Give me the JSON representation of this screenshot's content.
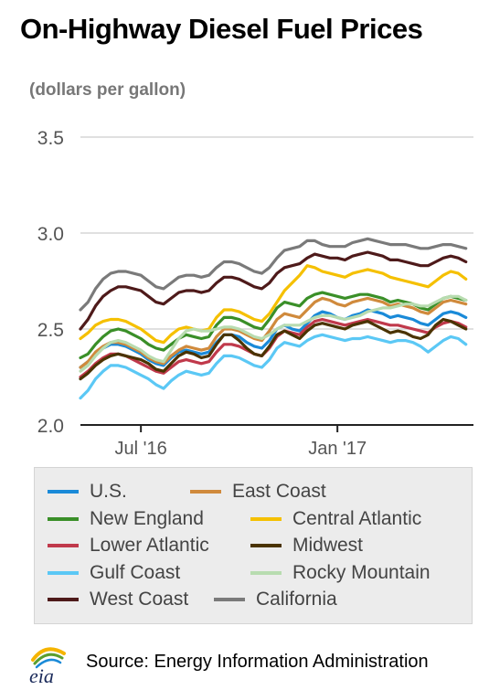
{
  "title": "On-Highway Diesel Fuel Prices",
  "units_label": "(dollars per gallon)",
  "source": "Source: Energy Information Administration",
  "logo_text": "eia",
  "chart_data": {
    "type": "line",
    "ylim": [
      2.0,
      3.5
    ],
    "y_ticks": [
      "2.0",
      "2.5",
      "3.0",
      "3.5"
    ],
    "x_tick_labels": [
      "Jul '16",
      "Jan '17"
    ],
    "x_tick_positions": [
      8,
      34
    ],
    "x_range": [
      0,
      52
    ],
    "grid": true,
    "legend_position": "bottom",
    "series": [
      {
        "name": "U.S.",
        "color": "#1a8ad8",
        "values": [
          2.3,
          2.33,
          2.37,
          2.4,
          2.42,
          2.42,
          2.41,
          2.39,
          2.37,
          2.34,
          2.32,
          2.31,
          2.35,
          2.38,
          2.39,
          2.38,
          2.37,
          2.38,
          2.43,
          2.47,
          2.47,
          2.46,
          2.43,
          2.41,
          2.4,
          2.44,
          2.5,
          2.52,
          2.5,
          2.49,
          2.53,
          2.57,
          2.59,
          2.58,
          2.56,
          2.55,
          2.57,
          2.58,
          2.6,
          2.59,
          2.58,
          2.56,
          2.57,
          2.56,
          2.55,
          2.53,
          2.52,
          2.55,
          2.58,
          2.59,
          2.58,
          2.56
        ]
      },
      {
        "name": "East Coast",
        "color": "#d08a3c",
        "values": [
          2.3,
          2.33,
          2.38,
          2.41,
          2.43,
          2.43,
          2.42,
          2.4,
          2.38,
          2.35,
          2.33,
          2.32,
          2.36,
          2.39,
          2.41,
          2.4,
          2.39,
          2.4,
          2.46,
          2.5,
          2.5,
          2.49,
          2.47,
          2.45,
          2.44,
          2.49,
          2.55,
          2.58,
          2.57,
          2.56,
          2.6,
          2.64,
          2.66,
          2.65,
          2.63,
          2.62,
          2.64,
          2.65,
          2.66,
          2.65,
          2.64,
          2.62,
          2.63,
          2.62,
          2.61,
          2.59,
          2.58,
          2.61,
          2.64,
          2.65,
          2.64,
          2.63
        ]
      },
      {
        "name": "New England",
        "color": "#3a8f28",
        "values": [
          2.35,
          2.37,
          2.42,
          2.46,
          2.49,
          2.5,
          2.49,
          2.47,
          2.45,
          2.42,
          2.4,
          2.39,
          2.42,
          2.45,
          2.47,
          2.46,
          2.45,
          2.46,
          2.52,
          2.56,
          2.56,
          2.55,
          2.53,
          2.51,
          2.5,
          2.55,
          2.61,
          2.64,
          2.63,
          2.62,
          2.66,
          2.68,
          2.69,
          2.68,
          2.67,
          2.66,
          2.67,
          2.68,
          2.68,
          2.67,
          2.66,
          2.64,
          2.65,
          2.64,
          2.63,
          2.61,
          2.6,
          2.63,
          2.66,
          2.67,
          2.66,
          2.65
        ]
      },
      {
        "name": "Central Atlantic",
        "color": "#f5c000",
        "values": [
          2.45,
          2.48,
          2.52,
          2.54,
          2.55,
          2.55,
          2.54,
          2.52,
          2.5,
          2.47,
          2.44,
          2.43,
          2.47,
          2.5,
          2.51,
          2.5,
          2.49,
          2.5,
          2.56,
          2.6,
          2.6,
          2.59,
          2.57,
          2.55,
          2.54,
          2.58,
          2.64,
          2.7,
          2.74,
          2.78,
          2.83,
          2.82,
          2.8,
          2.79,
          2.78,
          2.77,
          2.79,
          2.8,
          2.81,
          2.8,
          2.79,
          2.77,
          2.76,
          2.75,
          2.74,
          2.73,
          2.72,
          2.75,
          2.78,
          2.8,
          2.79,
          2.76
        ]
      },
      {
        "name": "Lower Atlantic",
        "color": "#c0394b",
        "values": [
          2.25,
          2.28,
          2.32,
          2.35,
          2.37,
          2.37,
          2.36,
          2.34,
          2.32,
          2.3,
          2.28,
          2.27,
          2.3,
          2.33,
          2.34,
          2.33,
          2.32,
          2.33,
          2.38,
          2.42,
          2.42,
          2.41,
          2.39,
          2.37,
          2.36,
          2.4,
          2.46,
          2.49,
          2.48,
          2.47,
          2.51,
          2.54,
          2.55,
          2.54,
          2.53,
          2.52,
          2.53,
          2.54,
          2.55,
          2.54,
          2.53,
          2.52,
          2.52,
          2.51,
          2.5,
          2.49,
          2.48,
          2.51,
          2.53,
          2.54,
          2.53,
          2.51
        ]
      },
      {
        "name": "Midwest",
        "color": "#4a3300",
        "values": [
          2.24,
          2.27,
          2.31,
          2.34,
          2.36,
          2.37,
          2.36,
          2.35,
          2.34,
          2.32,
          2.29,
          2.28,
          2.32,
          2.36,
          2.38,
          2.37,
          2.35,
          2.36,
          2.42,
          2.47,
          2.47,
          2.44,
          2.4,
          2.37,
          2.36,
          2.41,
          2.47,
          2.49,
          2.47,
          2.45,
          2.49,
          2.52,
          2.53,
          2.52,
          2.51,
          2.5,
          2.52,
          2.53,
          2.54,
          2.52,
          2.5,
          2.48,
          2.49,
          2.48,
          2.46,
          2.45,
          2.47,
          2.52,
          2.55,
          2.54,
          2.52,
          2.5
        ]
      },
      {
        "name": "Gulf Coast",
        "color": "#5bc8f5",
        "values": [
          2.14,
          2.18,
          2.24,
          2.28,
          2.31,
          2.31,
          2.3,
          2.28,
          2.26,
          2.24,
          2.21,
          2.19,
          2.23,
          2.26,
          2.28,
          2.27,
          2.26,
          2.27,
          2.32,
          2.36,
          2.36,
          2.35,
          2.33,
          2.31,
          2.3,
          2.34,
          2.4,
          2.43,
          2.42,
          2.41,
          2.44,
          2.46,
          2.47,
          2.46,
          2.45,
          2.44,
          2.45,
          2.45,
          2.46,
          2.45,
          2.44,
          2.43,
          2.44,
          2.44,
          2.43,
          2.41,
          2.38,
          2.41,
          2.44,
          2.46,
          2.45,
          2.42
        ]
      },
      {
        "name": "Rocky Mountain",
        "color": "#b8dcb0",
        "values": [
          2.28,
          2.31,
          2.36,
          2.4,
          2.43,
          2.44,
          2.43,
          2.41,
          2.39,
          2.36,
          2.34,
          2.33,
          2.39,
          2.45,
          2.49,
          2.5,
          2.49,
          2.49,
          2.5,
          2.51,
          2.51,
          2.5,
          2.48,
          2.46,
          2.45,
          2.47,
          2.5,
          2.52,
          2.52,
          2.52,
          2.54,
          2.56,
          2.57,
          2.57,
          2.56,
          2.55,
          2.56,
          2.57,
          2.59,
          2.6,
          2.61,
          2.61,
          2.62,
          2.63,
          2.63,
          2.62,
          2.62,
          2.64,
          2.66,
          2.67,
          2.67,
          2.65
        ]
      },
      {
        "name": "West Coast",
        "color": "#4e1a1a",
        "values": [
          2.5,
          2.55,
          2.62,
          2.67,
          2.7,
          2.72,
          2.72,
          2.71,
          2.7,
          2.67,
          2.64,
          2.63,
          2.66,
          2.69,
          2.7,
          2.7,
          2.69,
          2.7,
          2.74,
          2.77,
          2.77,
          2.76,
          2.74,
          2.72,
          2.71,
          2.74,
          2.79,
          2.82,
          2.83,
          2.84,
          2.87,
          2.89,
          2.88,
          2.87,
          2.87,
          2.86,
          2.88,
          2.89,
          2.9,
          2.89,
          2.88,
          2.86,
          2.86,
          2.85,
          2.84,
          2.83,
          2.83,
          2.85,
          2.87,
          2.88,
          2.87,
          2.85
        ]
      },
      {
        "name": "California",
        "color": "#7a7a7a",
        "values": [
          2.6,
          2.64,
          2.71,
          2.76,
          2.79,
          2.8,
          2.8,
          2.79,
          2.78,
          2.75,
          2.72,
          2.71,
          2.74,
          2.77,
          2.78,
          2.78,
          2.77,
          2.78,
          2.82,
          2.85,
          2.85,
          2.84,
          2.82,
          2.8,
          2.79,
          2.82,
          2.87,
          2.91,
          2.92,
          2.93,
          2.96,
          2.96,
          2.94,
          2.93,
          2.93,
          2.93,
          2.95,
          2.96,
          2.97,
          2.96,
          2.95,
          2.94,
          2.94,
          2.94,
          2.93,
          2.92,
          2.92,
          2.93,
          2.94,
          2.94,
          2.93,
          2.92
        ]
      }
    ]
  }
}
